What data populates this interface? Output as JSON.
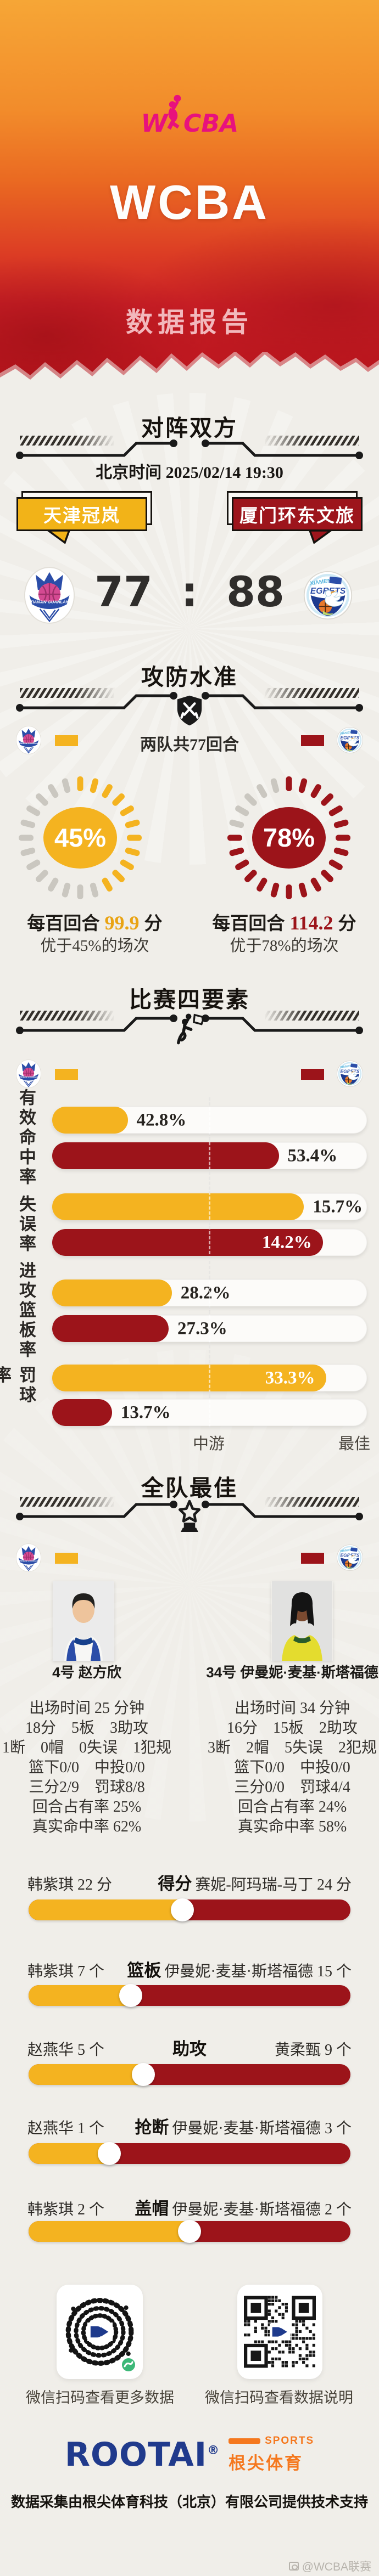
{
  "colors": {
    "home": "#f4b320",
    "away": "#9c141a",
    "pink": "#e8117d",
    "header_red": "#c1161f",
    "rootai_blue": "#203a8c",
    "rootai_orange": "#f5781e"
  },
  "hero": {
    "logo": "W",
    "logo_rest": "CBA",
    "title": "WCBA",
    "subtitle": "数据报告"
  },
  "matchup": {
    "title": "对阵双方",
    "time": "北京时间 2025/02/14 19:30",
    "home_name": "天津冠岚",
    "away_name": "厦门环东文旅",
    "home_score": "77",
    "score_sep": ":",
    "away_score": "88"
  },
  "offdef": {
    "title": "攻防水准",
    "note": "两队共77回合",
    "home": {
      "pct_label": "45%",
      "pct": 45,
      "line1_pre": "每百回合",
      "line1_num": "99.9",
      "line1_post": "分",
      "line2": "优于45%的场次"
    },
    "away": {
      "pct_label": "78%",
      "pct": 78,
      "line1_pre": "每百回合",
      "line1_num": "114.2",
      "line1_post": "分",
      "line2": "优于78%的场次"
    }
  },
  "factors": {
    "title": "比赛四要素",
    "axis_mid": "中游",
    "axis_best": "最佳",
    "rows": [
      {
        "label": "有效命中率",
        "home_value": "42.8%",
        "home_fill": 24,
        "away_value": "53.4%",
        "away_fill": 72
      },
      {
        "label": "失误率",
        "home_value": "15.7%",
        "home_fill": 80,
        "away_value": "14.2%",
        "away_fill": 86
      },
      {
        "label": "进攻篮板率",
        "home_value": "28.2%",
        "home_fill": 38,
        "away_value": "27.3%",
        "away_fill": 37
      },
      {
        "label": "罚球率",
        "home_value": "33.3%",
        "home_fill": 87,
        "away_value": "13.7%",
        "away_fill": 19
      }
    ]
  },
  "best": {
    "title": "全队最佳",
    "home_player": {
      "name": "4号 赵方欣",
      "lines": [
        "出场时间 25 分钟",
        "18分　5板　3助攻",
        "1断　0帽　0失误　1犯规",
        "篮下0/0　中投0/0",
        "三分2/9　罚球8/8",
        "回合占有率 25%",
        "真实命中率 62%"
      ]
    },
    "away_player": {
      "name": "34号 伊曼妮·麦基·斯塔福德",
      "lines": [
        "出场时间 34 分钟",
        "16分　15板　2助攻",
        "3断　2帽　5失误　2犯规",
        "篮下0/0　中投0/0",
        "三分0/0　罚球4/4",
        "回合占有率 24%",
        "真实命中率 58%"
      ]
    },
    "h2h": [
      {
        "cat": "得分",
        "home": "韩紫琪 22 分",
        "away": "赛妮-阿玛瑞-马丁 24 分",
        "split": 47.8
      },
      {
        "cat": "篮板",
        "home": "韩紫琪 7 个",
        "away": "伊曼妮·麦基·斯塔福德 15 个",
        "split": 31.8
      },
      {
        "cat": "助攻",
        "home": "赵燕华 5 个",
        "away": "黄柔甄 9 个",
        "split": 35.7
      },
      {
        "cat": "抢断",
        "home": "赵燕华 1 个",
        "away": "伊曼妮·麦基·斯塔福德 3 个",
        "split": 25
      },
      {
        "cat": "盖帽",
        "home": "韩紫琪 2 个",
        "away": "伊曼妮·麦基·斯塔福德 2 个",
        "split": 50
      }
    ]
  },
  "footer": {
    "qr_left_caption": "微信扫码查看更多数据",
    "qr_right_caption": "微信扫码查看数据说明",
    "brand": "ROOTAI",
    "brand_reg": "®",
    "brand_sports": "SPORTS",
    "brand_cn": "根尖体育",
    "note": "数据采集由根尖体育科技（北京）有限公司提供技术支持",
    "watermark": "@WCBA联赛"
  },
  "chart_data": [
    {
      "type": "bar",
      "title": "攻防水准",
      "note": "两队共77回合",
      "categories": [
        "天津冠岚",
        "厦门环东文旅"
      ],
      "series": [
        {
          "name": "每百回合得分",
          "values": [
            99.9,
            114.2
          ]
        },
        {
          "name": "优于场次百分比",
          "values": [
            45,
            78
          ]
        }
      ],
      "final_score": {
        "天津冠岚": 77,
        "厦门环东文旅": 88
      }
    },
    {
      "type": "bar",
      "title": "比赛四要素",
      "categories": [
        "有效命中率",
        "失误率",
        "进攻篮板率",
        "罚球率"
      ],
      "series": [
        {
          "name": "天津冠岚",
          "values": [
            42.8,
            15.7,
            28.2,
            33.3
          ]
        },
        {
          "name": "厦门环东文旅",
          "values": [
            53.4,
            14.2,
            27.3,
            13.7
          ]
        }
      ],
      "unit": "%",
      "bar_fill_percentile": {
        "天津冠岚": [
          24,
          80,
          38,
          87
        ],
        "厦门环东文旅": [
          72,
          86,
          37,
          19
        ]
      },
      "axis_labels": [
        "中游",
        "最佳"
      ],
      "legend_position": "top"
    },
    {
      "type": "bar",
      "title": "全队最佳",
      "categories": [
        "得分",
        "篮板",
        "助攻",
        "抢断",
        "盖帽"
      ],
      "series": [
        {
          "name": "天津冠岚",
          "values": [
            22,
            7,
            5,
            1,
            2
          ],
          "players": [
            "韩紫琪",
            "韩紫琪",
            "赵燕华",
            "赵燕华",
            "韩紫琪"
          ]
        },
        {
          "name": "厦门环东文旅",
          "values": [
            24,
            15,
            9,
            3,
            2
          ],
          "players": [
            "赛妮-阿玛瑞-马丁",
            "伊曼妮·麦基·斯塔福德",
            "黄柔甄",
            "伊曼妮·麦基·斯塔福德",
            "伊曼妮·麦基·斯塔福德"
          ]
        }
      ]
    }
  ]
}
